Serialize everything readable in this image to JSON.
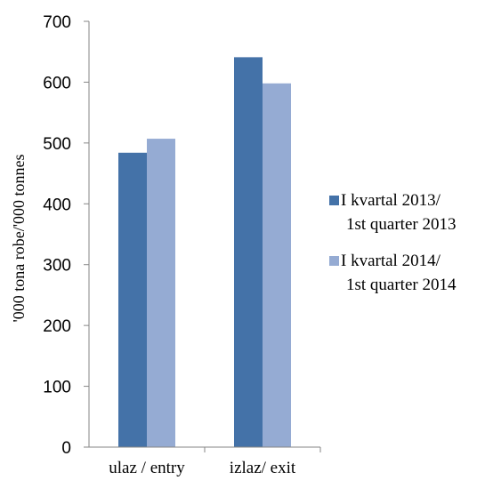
{
  "chart_data": {
    "type": "bar",
    "categories": [
      "ulaz / entry",
      "izlaz/ exit"
    ],
    "series": [
      {
        "name": [
          "I kvartal 2013/",
          "1st quarter 2013"
        ],
        "values": [
          484,
          641
        ],
        "color": "#4472A8"
      },
      {
        "name": [
          "I kvartal 2014/",
          "1st quarter 2014"
        ],
        "values": [
          507,
          598
        ],
        "color": "#95ABD3"
      }
    ],
    "ylabel": "'000 tona robe/'000 tonnes",
    "ylim": [
      0,
      700
    ],
    "yticks": [
      0,
      100,
      200,
      300,
      400,
      500,
      600,
      700
    ],
    "grid": false,
    "legend_position": "right"
  }
}
